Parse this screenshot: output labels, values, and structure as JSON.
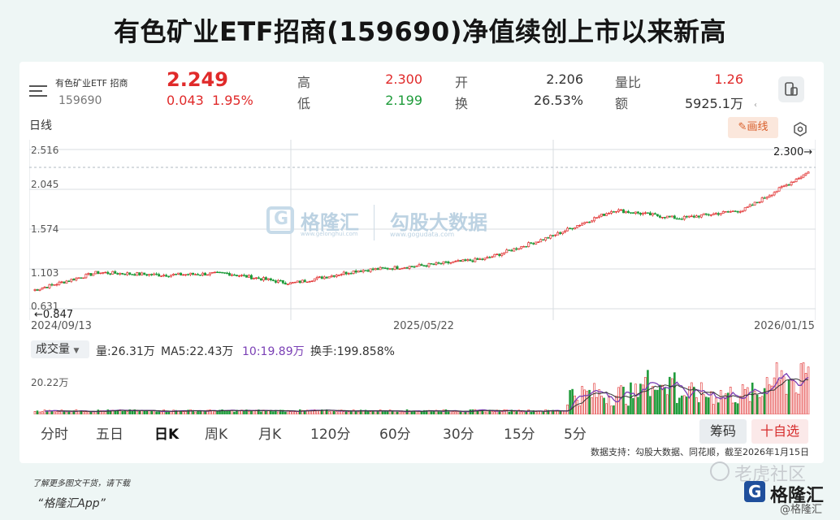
{
  "headline": "有色矿业ETF招商(159690)净值续创上市以来新高",
  "quote": {
    "name": "有色矿业ETF 招商",
    "code": "159690",
    "price": "2.249",
    "change": "0.043",
    "change_pct": "1.95%",
    "high_label": "高",
    "high": "2.300",
    "low_label": "低",
    "low": "2.199",
    "open_label": "开",
    "open": "2.206",
    "turnover_label": "换",
    "turnover": "26.53%",
    "vol_ratio_label": "量比",
    "vol_ratio": "1.26",
    "amount_label": "额",
    "amount": "5925.1万"
  },
  "chart_header": {
    "period_label": "日线",
    "draw_button": "画线"
  },
  "price_axis": {
    "ticks": [
      "2.516",
      "2.045",
      "1.574",
      "1.103",
      "0.631"
    ],
    "max_marker": "2.300→",
    "min_marker": "←0.847"
  },
  "date_axis": [
    "2024/09/13",
    "2025/05/22",
    "2026/01/15"
  ],
  "watermark": {
    "brand1": "格隆汇",
    "url1": "www.gelonghui.com",
    "brand2": "勾股大数据",
    "url2": "www.gogudata.com"
  },
  "volume": {
    "selector": "成交量",
    "vol": "量:26.31万",
    "ma5": "MA5:22.43万",
    "ma10": "10:19.89万",
    "turnover": "换手:199.858%",
    "axis_tick": "20.22万"
  },
  "period_tabs": [
    "分时",
    "五日",
    "日K",
    "周K",
    "月K",
    "120分",
    "60分",
    "30分",
    "15分",
    "5分"
  ],
  "active_tab": "日K",
  "buttons": {
    "chips": "筹码",
    "watchlist": "十自选"
  },
  "source": "数据支持：勾股大数据、同花顺，截至2026年1月15日",
  "footer": {
    "note": "了解更多图文干货，请下载",
    "app": "“格隆汇App”"
  },
  "brand": {
    "tiger": "老虎社区",
    "name": "格隆汇",
    "handle": "@格隆汇"
  },
  "colors": {
    "up": "#e02a2a",
    "down": "#1e9b3a",
    "ma5": "#7a3fb5",
    "ma10": "#d4a017"
  },
  "chart_data": {
    "type": "candlestick",
    "series": [
      {
        "x": "2024/09/13",
        "close": 0.847
      },
      {
        "x": "2024/10",
        "close": 1.06
      },
      {
        "x": "2024/12",
        "close": 1.03
      },
      {
        "x": "2025/02",
        "close": 1.05
      },
      {
        "x": "2025/04",
        "close": 0.93
      },
      {
        "x": "2025/05/22",
        "close": 1.08
      },
      {
        "x": "2025/07",
        "close": 1.14
      },
      {
        "x": "2025/08",
        "close": 1.22
      },
      {
        "x": "2025/09",
        "close": 1.48
      },
      {
        "x": "2025/10",
        "close": 1.8
      },
      {
        "x": "2025/11",
        "close": 1.7
      },
      {
        "x": "2025/12",
        "close": 1.8
      },
      {
        "x": "2026/01/15",
        "close": 2.249
      }
    ],
    "ylim": [
      0.631,
      2.516
    ],
    "high": 2.3,
    "low": 0.847
  }
}
